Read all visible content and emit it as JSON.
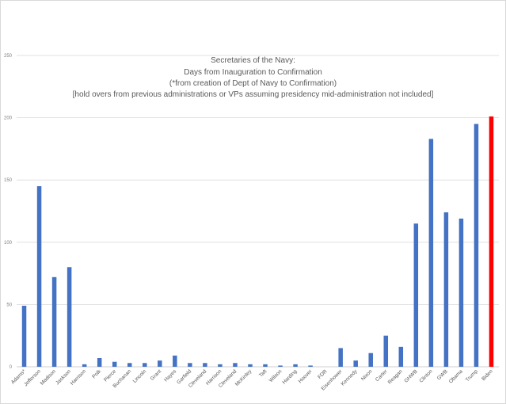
{
  "chart_data": {
    "type": "bar",
    "title": [
      "Secretaries of the Navy:",
      "Days from Inauguration to Confirmation",
      "(*from creation of Dept of Navy to Confirmation)",
      "[hold overs from previous administrations or VPs assuming presidency mid-administration not included]"
    ],
    "xlabel": "",
    "ylabel": "",
    "ylim": [
      0,
      250
    ],
    "yticks": [
      0,
      50,
      100,
      150,
      200,
      250
    ],
    "grid": true,
    "legend": "none",
    "categories": [
      "Adams*",
      "Jefferson",
      "Madison",
      "Jackson",
      "Harrison",
      "Polk",
      "Pierce",
      "Buchanan",
      "Lincoln",
      "Grant",
      "Hayes",
      "Garfield",
      "Cleveland",
      "Harrison",
      "Cleveland",
      "McKinley",
      "Taft",
      "Wilson",
      "Harding",
      "Hoover",
      "FDR",
      "Eisenhower",
      "Kennedy",
      "Nixon",
      "Carter",
      "Reagan",
      "GHWB",
      "Clinton",
      "GWB",
      "Obama",
      "Trump",
      "Biden"
    ],
    "values": [
      49,
      145,
      72,
      80,
      2,
      7,
      4,
      3,
      3,
      5,
      9,
      3,
      3,
      2,
      3,
      2,
      2,
      1,
      2,
      1,
      0,
      15,
      5,
      11,
      25,
      16,
      115,
      183,
      124,
      119,
      195,
      201
    ],
    "colors": {
      "bar": "#4472c4",
      "highlight": "#ff0000",
      "grid": "#d9d9d9",
      "axis": "#bfbfbf"
    },
    "highlight_category": "Biden"
  }
}
